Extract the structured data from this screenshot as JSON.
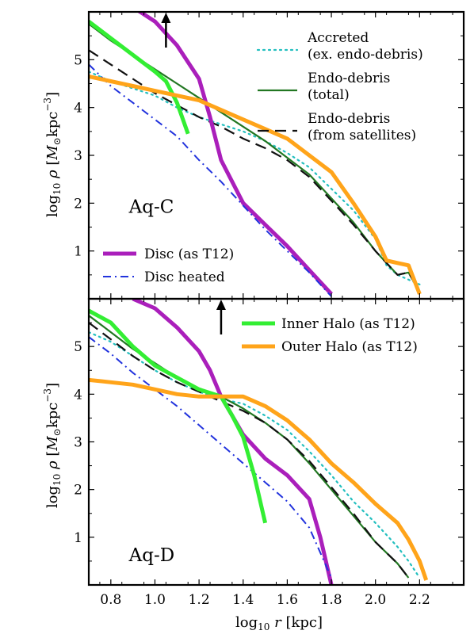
{
  "chart_data": [
    {
      "type": "line",
      "panel_label": "Aq-C",
      "xlim": [
        0.7,
        2.4
      ],
      "ylim": [
        0,
        6
      ],
      "arrow_x": 1.05,
      "xlabel": "log10 r [kpc]",
      "ylabel": "log10 ρ [M⊙kpc−3]",
      "xticks": [
        "0.8",
        "1.0",
        "1.2",
        "1.4",
        "1.6",
        "1.8",
        "2.0",
        "2.2"
      ],
      "yticks": [
        "1",
        "2",
        "3",
        "4",
        "5"
      ],
      "grid": false,
      "legend_placement": "top-right",
      "series": [
        {
          "name": "Accreted (ex. endo-debris)",
          "legend_lines": [
            "Accreted",
            "(ex. endo-debris)"
          ],
          "color": "#23bfbf",
          "style": "dotted",
          "width": 2.2,
          "x": [
            0.7,
            0.8,
            0.9,
            1.0,
            1.1,
            1.2,
            1.3,
            1.4,
            1.5,
            1.6,
            1.7,
            1.8,
            1.9,
            2.0,
            2.05,
            2.1,
            2.2
          ],
          "y": [
            4.75,
            4.55,
            4.4,
            4.25,
            4.0,
            3.8,
            3.65,
            3.5,
            3.3,
            3.05,
            2.75,
            2.3,
            1.85,
            1.25,
            0.7,
            0.5,
            0.3
          ]
        },
        {
          "name": "Endo-debris (total)",
          "legend_lines": [
            "Endo-debris",
            "(total)"
          ],
          "color": "#227722",
          "style": "solid",
          "width": 2.2,
          "x": [
            0.7,
            0.8,
            0.9,
            1.0,
            1.1,
            1.2,
            1.3,
            1.4,
            1.5,
            1.6,
            1.7,
            1.8,
            1.9,
            2.0,
            2.1,
            2.15,
            2.2
          ],
          "y": [
            5.75,
            5.4,
            5.1,
            4.8,
            4.5,
            4.2,
            3.9,
            3.6,
            3.3,
            2.95,
            2.6,
            2.1,
            1.6,
            1.0,
            0.5,
            0.55,
            0.15
          ]
        },
        {
          "name": "Endo-debris (from satellites)",
          "legend_lines": [
            "Endo-debris",
            "(from satellites)"
          ],
          "color": "#111111",
          "style": "dashed",
          "width": 2.2,
          "x": [
            0.7,
            0.8,
            0.9,
            1.0,
            1.1,
            1.2,
            1.3,
            1.4,
            1.5,
            1.6,
            1.7,
            1.8,
            1.9,
            2.0,
            2.1,
            2.15,
            2.2
          ],
          "y": [
            5.2,
            4.9,
            4.6,
            4.3,
            4.05,
            3.8,
            3.6,
            3.35,
            3.15,
            2.9,
            2.55,
            2.05,
            1.55,
            1.0,
            0.5,
            0.55,
            0.15
          ]
        },
        {
          "name": "Disc (as T12)",
          "color": "#aa1fbb",
          "style": "solid",
          "width": 5,
          "x": [
            0.9,
            1.0,
            1.1,
            1.2,
            1.25,
            1.3,
            1.4,
            1.5,
            1.6,
            1.7,
            1.8
          ],
          "y": [
            6.1,
            5.8,
            5.3,
            4.6,
            3.8,
            2.9,
            2.0,
            1.55,
            1.1,
            0.6,
            0.1
          ]
        },
        {
          "name": "Disc heated",
          "color": "#2233dd",
          "style": "dashdot",
          "width": 2,
          "x": [
            0.7,
            0.8,
            0.9,
            1.0,
            1.1,
            1.2,
            1.3,
            1.4,
            1.5,
            1.6,
            1.7,
            1.8
          ],
          "y": [
            4.9,
            4.45,
            4.1,
            3.75,
            3.4,
            2.9,
            2.45,
            1.95,
            1.45,
            1.0,
            0.55,
            0.05
          ]
        },
        {
          "name": "Inner Halo (as T12)",
          "color": "#33ee33",
          "style": "solid",
          "width": 5,
          "x": [
            0.7,
            0.8,
            0.9,
            1.0,
            1.05,
            1.1,
            1.15
          ],
          "y": [
            5.8,
            5.45,
            5.1,
            4.75,
            4.55,
            4.1,
            3.45
          ]
        },
        {
          "name": "Outer Halo (as T12)",
          "color": "#ffa41a",
          "style": "solid",
          "width": 5,
          "x": [
            0.7,
            0.8,
            0.9,
            1.0,
            1.1,
            1.2,
            1.3,
            1.4,
            1.5,
            1.6,
            1.7,
            1.8,
            1.9,
            2.0,
            2.05,
            2.1,
            2.15,
            2.2
          ],
          "y": [
            4.65,
            4.55,
            4.45,
            4.35,
            4.25,
            4.15,
            3.95,
            3.75,
            3.55,
            3.35,
            3.0,
            2.65,
            2.0,
            1.3,
            0.8,
            0.75,
            0.7,
            0.1
          ]
        }
      ]
    },
    {
      "type": "line",
      "panel_label": "Aq-D",
      "xlim": [
        0.7,
        2.4
      ],
      "ylim": [
        0,
        6
      ],
      "arrow_x": 1.3,
      "xlabel": "log10 r [kpc]",
      "ylabel": "log10 ρ [M⊙kpc−3]",
      "xticks": [
        "0.8",
        "1.0",
        "1.2",
        "1.4",
        "1.6",
        "1.8",
        "2.0",
        "2.2"
      ],
      "yticks": [
        "1",
        "2",
        "3",
        "4",
        "5"
      ],
      "grid": false,
      "series": [
        {
          "name": "Accreted (ex. endo-debris)",
          "color": "#23bfbf",
          "style": "dotted",
          "width": 2.2,
          "x": [
            0.7,
            0.8,
            0.9,
            1.0,
            1.1,
            1.2,
            1.3,
            1.4,
            1.5,
            1.6,
            1.7,
            1.8,
            1.9,
            2.0,
            2.1,
            2.15,
            2.2
          ],
          "y": [
            5.3,
            5.1,
            4.8,
            4.5,
            4.25,
            4.05,
            3.9,
            3.8,
            3.55,
            3.25,
            2.8,
            2.3,
            1.75,
            1.3,
            0.8,
            0.5,
            0.15
          ]
        },
        {
          "name": "Endo-debris (total)",
          "color": "#227722",
          "style": "solid",
          "width": 2.2,
          "x": [
            0.7,
            0.8,
            0.9,
            1.0,
            1.1,
            1.2,
            1.3,
            1.4,
            1.5,
            1.6,
            1.7,
            1.8,
            1.9,
            2.0,
            2.1,
            2.15
          ],
          "y": [
            5.65,
            5.3,
            4.95,
            4.65,
            4.35,
            4.1,
            3.95,
            3.7,
            3.4,
            3.05,
            2.55,
            2.0,
            1.45,
            0.9,
            0.45,
            0.15
          ]
        },
        {
          "name": "Endo-debris (from satellites)",
          "color": "#111111",
          "style": "dashed",
          "width": 2.2,
          "x": [
            0.7,
            0.8,
            0.9,
            1.0,
            1.1,
            1.2,
            1.3,
            1.4,
            1.5,
            1.6,
            1.7,
            1.8,
            1.9,
            2.0,
            2.1,
            2.15
          ],
          "y": [
            5.5,
            5.15,
            4.8,
            4.5,
            4.25,
            4.05,
            3.85,
            3.65,
            3.4,
            3.05,
            2.6,
            2.05,
            1.5,
            0.9,
            0.45,
            0.15
          ]
        },
        {
          "name": "Disc (as T12)",
          "color": "#aa1fbb",
          "style": "solid",
          "width": 5,
          "x": [
            0.9,
            1.0,
            1.1,
            1.2,
            1.25,
            1.3,
            1.35,
            1.4,
            1.5,
            1.6,
            1.7,
            1.75,
            1.8
          ],
          "y": [
            6.0,
            5.8,
            5.4,
            4.9,
            4.5,
            3.95,
            3.55,
            3.15,
            2.65,
            2.3,
            1.8,
            1.0,
            0.0
          ]
        },
        {
          "name": "Disc heated",
          "color": "#2233dd",
          "style": "dashdot",
          "width": 2,
          "x": [
            0.7,
            0.8,
            0.9,
            1.0,
            1.1,
            1.2,
            1.3,
            1.4,
            1.5,
            1.6,
            1.7,
            1.8
          ],
          "y": [
            5.2,
            4.85,
            4.45,
            4.1,
            3.75,
            3.35,
            2.95,
            2.55,
            2.15,
            1.75,
            1.2,
            0.15
          ]
        },
        {
          "name": "Inner Halo (as T12)",
          "color": "#33ee33",
          "style": "solid",
          "width": 5,
          "x": [
            0.7,
            0.8,
            0.9,
            1.0,
            1.1,
            1.2,
            1.3,
            1.35,
            1.4,
            1.45,
            1.5
          ],
          "y": [
            5.75,
            5.5,
            5.0,
            4.6,
            4.35,
            4.1,
            3.95,
            3.55,
            3.1,
            2.3,
            1.3
          ]
        },
        {
          "name": "Outer Halo (as T12)",
          "color": "#ffa41a",
          "style": "solid",
          "width": 5,
          "x": [
            0.7,
            0.8,
            0.9,
            1.0,
            1.1,
            1.2,
            1.3,
            1.4,
            1.5,
            1.6,
            1.7,
            1.8,
            1.9,
            2.0,
            2.1,
            2.15,
            2.2,
            2.23
          ],
          "y": [
            4.3,
            4.25,
            4.2,
            4.1,
            4.0,
            3.95,
            3.95,
            3.95,
            3.75,
            3.45,
            3.05,
            2.55,
            2.15,
            1.7,
            1.3,
            0.95,
            0.5,
            0.1
          ]
        }
      ]
    }
  ]
}
